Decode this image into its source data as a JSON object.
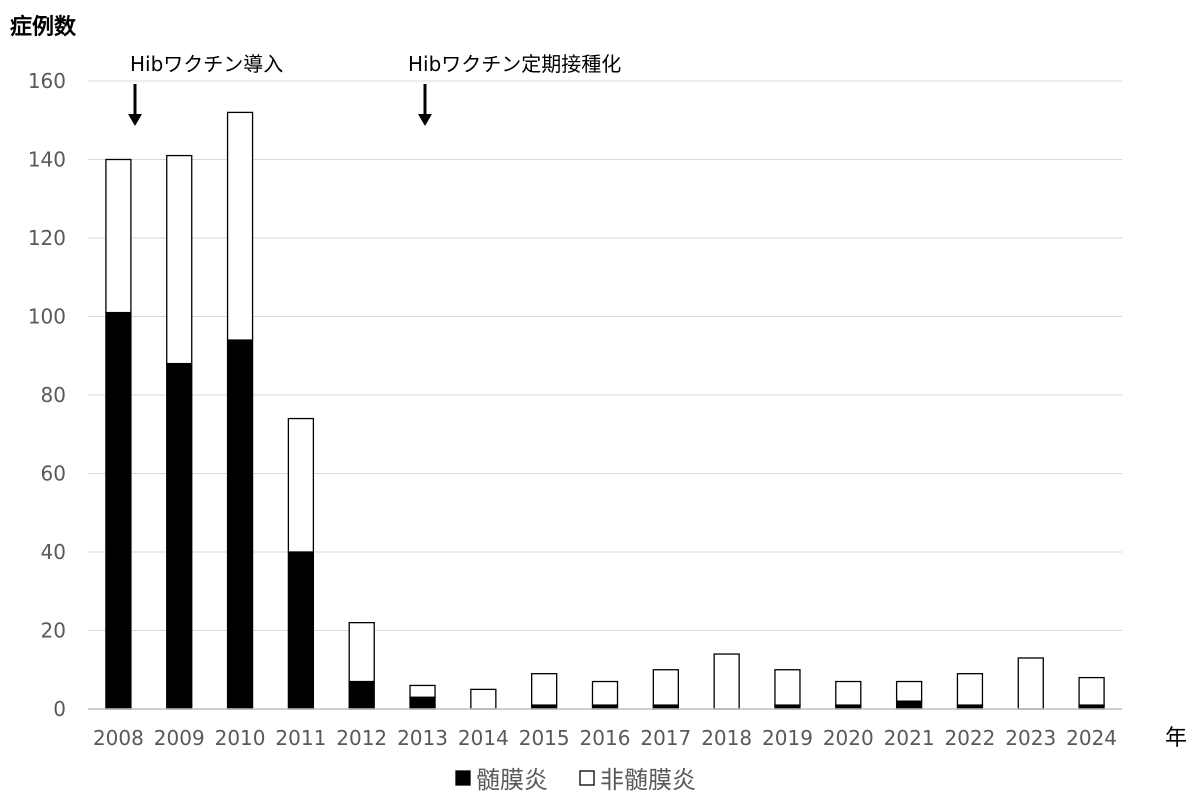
{
  "chart_data": {
    "type": "bar",
    "stacked": true,
    "ylabel": "症例数",
    "xlabel": "年",
    "ylim": [
      0,
      160
    ],
    "yticks": [
      0,
      20,
      40,
      60,
      80,
      100,
      120,
      140,
      160
    ],
    "grid": true,
    "legend_position": "bottom",
    "categories": [
      "2008",
      "2009",
      "2010",
      "2011",
      "2012",
      "2013",
      "2014",
      "2015",
      "2016",
      "2017",
      "2018",
      "2019",
      "2020",
      "2021",
      "2022",
      "2023",
      "2024"
    ],
    "series": [
      {
        "name": "髄膜炎",
        "color": "#000000",
        "values": [
          101,
          88,
          94,
          40,
          7,
          3,
          0,
          1,
          1,
          1,
          0,
          1,
          1,
          2,
          1,
          0,
          1
        ]
      },
      {
        "name": "非髄膜炎",
        "color": "#ffffff",
        "values": [
          39,
          53,
          58,
          34,
          15,
          3,
          5,
          8,
          6,
          9,
          14,
          9,
          6,
          5,
          8,
          13,
          7
        ]
      }
    ],
    "annotations": [
      {
        "text": "Hibワクチン導入",
        "category": "2008"
      },
      {
        "text": "Hibワクチン定期接種化",
        "category": "2013"
      }
    ]
  }
}
